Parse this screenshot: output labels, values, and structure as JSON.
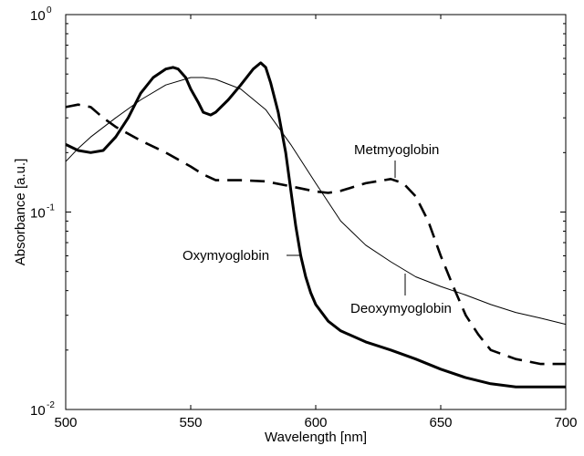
{
  "chart_data": {
    "type": "line",
    "title": "",
    "xlabel": "Wavelength [nm]",
    "ylabel": "Absorbance [a.u.]",
    "xlim": [
      500,
      700
    ],
    "ylim": [
      0.01,
      1
    ],
    "yscale": "log",
    "grid": false,
    "legend": "none",
    "x_ticks": [
      500,
      550,
      600,
      650,
      700
    ],
    "x_tick_labels": [
      "500",
      "550",
      "600",
      "650",
      "700"
    ],
    "y_ticks": [
      {
        "value": 1,
        "base": "10",
        "exp": "0"
      },
      {
        "value": 0.1,
        "base": "10",
        "exp": "-1"
      },
      {
        "value": 0.01,
        "base": "10",
        "exp": "-2"
      }
    ],
    "series": [
      {
        "name": "Oxymyoglobin",
        "style": "thick-solid",
        "x": [
          500,
          505,
          510,
          515,
          520,
          525,
          530,
          535,
          540,
          543,
          545,
          548,
          550,
          553,
          555,
          558,
          560,
          565,
          570,
          575,
          578,
          580,
          582,
          585,
          588,
          590,
          592,
          594,
          596,
          598,
          600,
          605,
          610,
          620,
          630,
          640,
          650,
          660,
          670,
          680,
          690,
          700
        ],
        "y": [
          0.22,
          0.205,
          0.2,
          0.205,
          0.24,
          0.3,
          0.4,
          0.48,
          0.53,
          0.54,
          0.53,
          0.48,
          0.42,
          0.36,
          0.32,
          0.31,
          0.32,
          0.37,
          0.44,
          0.53,
          0.57,
          0.54,
          0.45,
          0.32,
          0.2,
          0.13,
          0.085,
          0.06,
          0.047,
          0.039,
          0.034,
          0.028,
          0.025,
          0.022,
          0.02,
          0.018,
          0.016,
          0.0145,
          0.0135,
          0.013,
          0.013,
          0.013
        ]
      },
      {
        "name": "Deoxymyoglobin",
        "style": "thin-solid",
        "x": [
          500,
          505,
          510,
          520,
          530,
          540,
          550,
          555,
          560,
          570,
          580,
          590,
          600,
          610,
          620,
          630,
          640,
          650,
          660,
          670,
          680,
          690,
          700
        ],
        "y": [
          0.18,
          0.21,
          0.24,
          0.3,
          0.37,
          0.44,
          0.48,
          0.48,
          0.47,
          0.42,
          0.33,
          0.22,
          0.14,
          0.09,
          0.068,
          0.056,
          0.047,
          0.042,
          0.038,
          0.034,
          0.031,
          0.029,
          0.027
        ]
      },
      {
        "name": "Metmyoglobin",
        "style": "dashed",
        "x": [
          500,
          505,
          510,
          515,
          520,
          530,
          540,
          550,
          555,
          560,
          570,
          580,
          590,
          600,
          605,
          610,
          620,
          630,
          635,
          640,
          645,
          650,
          655,
          660,
          665,
          670,
          680,
          690,
          700
        ],
        "y": [
          0.34,
          0.35,
          0.34,
          0.3,
          0.27,
          0.23,
          0.2,
          0.17,
          0.155,
          0.145,
          0.145,
          0.143,
          0.135,
          0.127,
          0.125,
          0.128,
          0.14,
          0.147,
          0.14,
          0.12,
          0.09,
          0.06,
          0.042,
          0.03,
          0.024,
          0.02,
          0.018,
          0.017,
          0.017
        ]
      }
    ],
    "annotations": [
      {
        "text": "Metmyoglobin",
        "target": "Metmyoglobin"
      },
      {
        "text": "Oxymyoglobin",
        "target": "Oxymyoglobin"
      },
      {
        "text": "Deoxymyoglobin",
        "target": "Deoxymyoglobin"
      }
    ]
  }
}
